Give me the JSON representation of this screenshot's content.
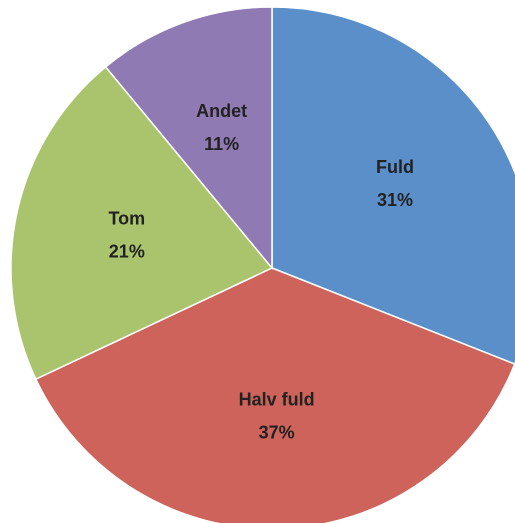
{
  "chart_data": {
    "type": "pie",
    "categories": [
      "Fuld",
      "Halv fuld",
      "Tom",
      "Andet"
    ],
    "values": [
      31,
      37,
      21,
      11
    ],
    "value_labels": [
      "31%",
      "37%",
      "21%",
      "11%"
    ],
    "colors": [
      "#5b8fc9",
      "#cd635a",
      "#a9c46c",
      "#8f7ab4"
    ]
  }
}
